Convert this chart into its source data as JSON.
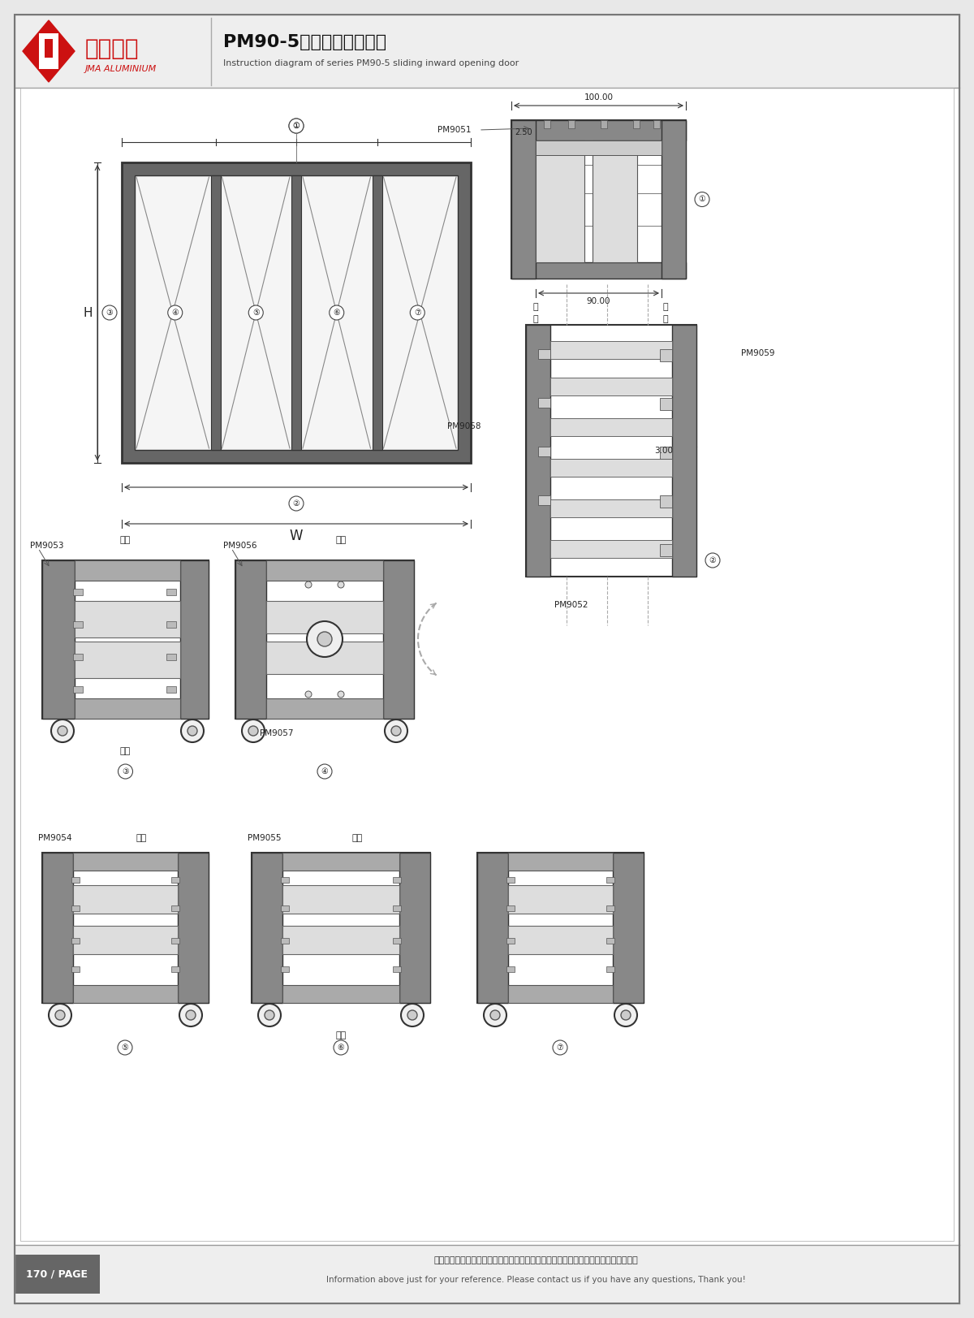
{
  "title_cn": "PM90-5系列折叠门结构图",
  "title_en": "Instruction diagram of series PM90-5 sliding inward opening door",
  "bg_color": "#e8e8e8",
  "page_bg": "#ffffff",
  "footer_text_cn": "图中所示型材截面、装配、编号、尺寸及重量仅供参考。如有疑问，请向本公司查询。",
  "footer_text_en": "Information above just for your reference. Please contact us if you have any questions, Thank you!",
  "page_label": "170 / PAGE",
  "logo_text1": "坚美铝业",
  "logo_text2": "JMA ALUMINIUM"
}
